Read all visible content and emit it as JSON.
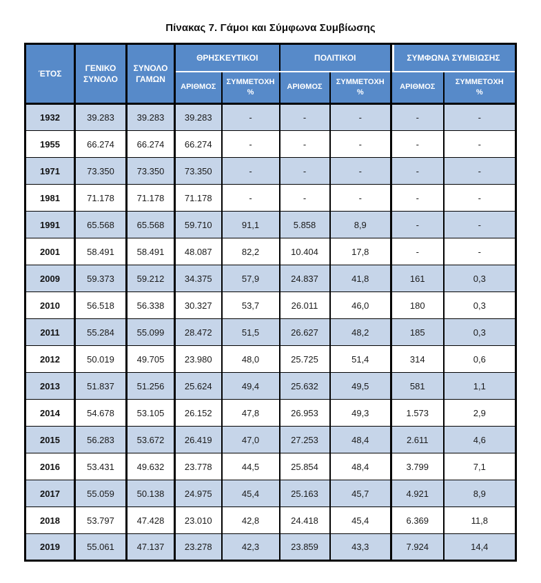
{
  "page": {
    "title": "Πίνακας 7. Γάμοι και Σύμφωνα Συμβίωσης"
  },
  "colors": {
    "header_bg": "#578AC9",
    "header_text": "#FFFFFF",
    "band_bg": "#C6D5E9",
    "border": "#000000"
  },
  "table": {
    "header": {
      "year": "ΈΤΟΣ",
      "general_total": "ΓΕΝΙΚΟ\nΣΥΝΟΛΟ",
      "total_marriages": "ΣΥΝΟΛΟ\nΓΑΜΩΝ",
      "groups": [
        {
          "label": "ΘΡΗΣΚΕΥΤΙΚΟΙ"
        },
        {
          "label": "ΠΟΛΙΤΙΚΟΙ"
        },
        {
          "label": "ΣΥΜΦΩΝΑ ΣΥΜΒΙΩΣΗΣ"
        }
      ],
      "sub_number": "ΑΡΙΘΜΟΣ",
      "sub_share": "ΣΥΜΜΕΤΟΧΗ\n%"
    },
    "rows": [
      {
        "year": "1932",
        "cells": [
          "39.283",
          "39.283",
          "39.283",
          "-",
          "-",
          "-",
          "-",
          "-"
        ]
      },
      {
        "year": "1955",
        "cells": [
          "66.274",
          "66.274",
          "66.274",
          "-",
          "-",
          "-",
          "-",
          "-"
        ]
      },
      {
        "year": "1971",
        "cells": [
          "73.350",
          "73.350",
          "73.350",
          "-",
          "-",
          "-",
          "-",
          "-"
        ]
      },
      {
        "year": "1981",
        "cells": [
          "71.178",
          "71.178",
          "71.178",
          "-",
          "-",
          "-",
          "-",
          "-"
        ]
      },
      {
        "year": "1991",
        "cells": [
          "65.568",
          "65.568",
          "59.710",
          "91,1",
          "5.858",
          "8,9",
          "-",
          "-"
        ]
      },
      {
        "year": "2001",
        "cells": [
          "58.491",
          "58.491",
          "48.087",
          "82,2",
          "10.404",
          "17,8",
          "-",
          "-"
        ]
      },
      {
        "year": "2009",
        "cells": [
          "59.373",
          "59.212",
          "34.375",
          "57,9",
          "24.837",
          "41,8",
          "161",
          "0,3"
        ]
      },
      {
        "year": "2010",
        "cells": [
          "56.518",
          "56.338",
          "30.327",
          "53,7",
          "26.011",
          "46,0",
          "180",
          "0,3"
        ]
      },
      {
        "year": "2011",
        "cells": [
          "55.284",
          "55.099",
          "28.472",
          "51,5",
          "26.627",
          "48,2",
          "185",
          "0,3"
        ]
      },
      {
        "year": "2012",
        "cells": [
          "50.019",
          "49.705",
          "23.980",
          "48,0",
          "25.725",
          "51,4",
          "314",
          "0,6"
        ]
      },
      {
        "year": "2013",
        "cells": [
          "51.837",
          "51.256",
          "25.624",
          "49,4",
          "25.632",
          "49,5",
          "581",
          "1,1"
        ]
      },
      {
        "year": "2014",
        "cells": [
          "54.678",
          "53.105",
          "26.152",
          "47,8",
          "26.953",
          "49,3",
          "1.573",
          "2,9"
        ]
      },
      {
        "year": "2015",
        "cells": [
          "56.283",
          "53.672",
          "26.419",
          "47,0",
          "27.253",
          "48,4",
          "2.611",
          "4,6"
        ]
      },
      {
        "year": "2016",
        "cells": [
          "53.431",
          "49.632",
          "23.778",
          "44,5",
          "25.854",
          "48,4",
          "3.799",
          "7,1"
        ]
      },
      {
        "year": "2017",
        "cells": [
          "55.059",
          "50.138",
          "24.975",
          "45,4",
          "25.163",
          "45,7",
          "4.921",
          "8,9"
        ]
      },
      {
        "year": "2018",
        "cells": [
          "53.797",
          "47.428",
          "23.010",
          "42,8",
          "24.418",
          "45,4",
          "6.369",
          "11,8"
        ]
      },
      {
        "year": "2019",
        "cells": [
          "55.061",
          "47.137",
          "23.278",
          "42,3",
          "23.859",
          "43,3",
          "7.924",
          "14,4"
        ]
      }
    ]
  },
  "chart_data": {
    "type": "table",
    "title": "Πίνακας 7. Γάμοι και Σύμφωνα Συμβίωσης",
    "columns": [
      "ΈΤΟΣ",
      "ΓΕΝΙΚΟ ΣΥΝΟΛΟ",
      "ΣΥΝΟΛΟ ΓΑΜΩΝ",
      "ΘΡΗΣΚΕΥΤΙΚΟΙ ΑΡΙΘΜΟΣ",
      "ΘΡΗΣΚΕΥΤΙΚΟΙ ΣΥΜΜΕΤΟΧΗ %",
      "ΠΟΛΙΤΙΚΟΙ ΑΡΙΘΜΟΣ",
      "ΠΟΛΙΤΙΚΟΙ ΣΥΜΜΕΤΟΧΗ %",
      "ΣΥΜΦΩΝΑ ΣΥΜΒΙΩΣΗΣ ΑΡΙΘΜΟΣ",
      "ΣΥΜΦΩΝΑ ΣΥΜΒΙΩΣΗΣ ΣΥΜΜΕΤΟΧΗ %"
    ]
  }
}
